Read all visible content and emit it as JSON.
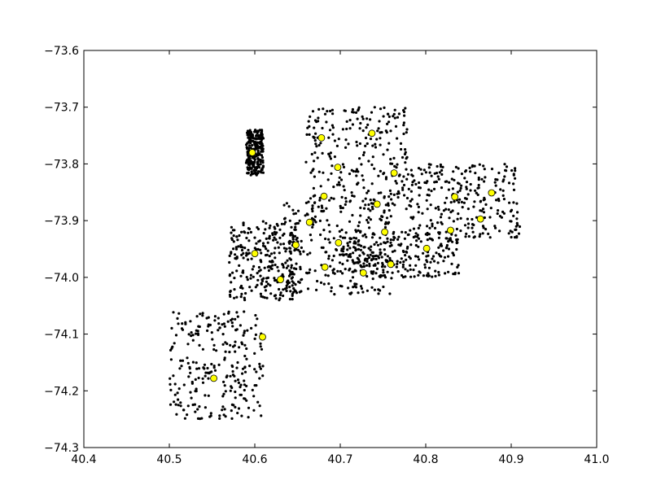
{
  "chart_data": {
    "type": "scatter",
    "title": "",
    "xlabel": "",
    "ylabel": "",
    "xlim": [
      40.4,
      41.0
    ],
    "ylim": [
      -74.3,
      -73.6
    ],
    "x_ticks": [
      40.4,
      40.5,
      40.6,
      40.7,
      40.8,
      40.9,
      41.0
    ],
    "x_tick_labels": [
      "40.4",
      "40.5",
      "40.6",
      "40.7",
      "40.8",
      "40.9",
      "41.0"
    ],
    "y_ticks": [
      -73.6,
      -73.7,
      -73.8,
      -73.9,
      -74.0,
      -74.1,
      -74.2,
      -74.3
    ],
    "y_tick_labels": [
      "−73.6",
      "−73.7",
      "−73.8",
      "−73.9",
      "−74.0",
      "−74.1",
      "−74.2",
      "−74.3"
    ],
    "grid": false,
    "legend": "none",
    "series": [
      {
        "marker_color": "#000000",
        "marker_size": "small",
        "regions": [
          {
            "x_range": [
              40.5,
              40.61
            ],
            "y_range": [
              -74.25,
              -74.06
            ]
          },
          {
            "x_range": [
              40.57,
              40.65
            ],
            "y_range": [
              -74.04,
              -73.9
            ]
          },
          {
            "x_range": [
              40.63,
              40.76
            ],
            "y_range": [
              -74.03,
              -73.86
            ]
          },
          {
            "x_range": [
              40.7,
              40.84
            ],
            "y_range": [
              -74.0,
              -73.92
            ]
          },
          {
            "x_range": [
              40.66,
              40.78
            ],
            "y_range": [
              -73.88,
              -73.7
            ]
          },
          {
            "x_range": [
              40.78,
              40.91
            ],
            "y_range": [
              -73.93,
              -73.8
            ]
          },
          {
            "x_range": [
              40.59,
              40.61
            ],
            "y_range": [
              -73.82,
              -73.74
            ]
          }
        ]
      },
      {
        "marker_color": "#ffff00",
        "marker_size": "large",
        "points": [
          {
            "x": 40.678,
            "y": -73.754
          },
          {
            "x": 40.737,
            "y": -73.746
          },
          {
            "x": 40.597,
            "y": -73.78
          },
          {
            "x": 40.697,
            "y": -73.806
          },
          {
            "x": 40.763,
            "y": -73.816
          },
          {
            "x": 40.877,
            "y": -73.851
          },
          {
            "x": 40.834,
            "y": -73.858
          },
          {
            "x": 40.681,
            "y": -73.857
          },
          {
            "x": 40.743,
            "y": -73.871
          },
          {
            "x": 40.864,
            "y": -73.897
          },
          {
            "x": 40.664,
            "y": -73.903
          },
          {
            "x": 40.829,
            "y": -73.917
          },
          {
            "x": 40.752,
            "y": -73.92
          },
          {
            "x": 40.698,
            "y": -73.939
          },
          {
            "x": 40.648,
            "y": -73.943
          },
          {
            "x": 40.801,
            "y": -73.949
          },
          {
            "x": 40.6,
            "y": -73.958
          },
          {
            "x": 40.759,
            "y": -73.977
          },
          {
            "x": 40.682,
            "y": -73.982
          },
          {
            "x": 40.727,
            "y": -73.992
          },
          {
            "x": 40.63,
            "y": -74.004
          },
          {
            "x": 40.609,
            "y": -74.105
          },
          {
            "x": 40.552,
            "y": -74.178
          }
        ]
      }
    ]
  }
}
